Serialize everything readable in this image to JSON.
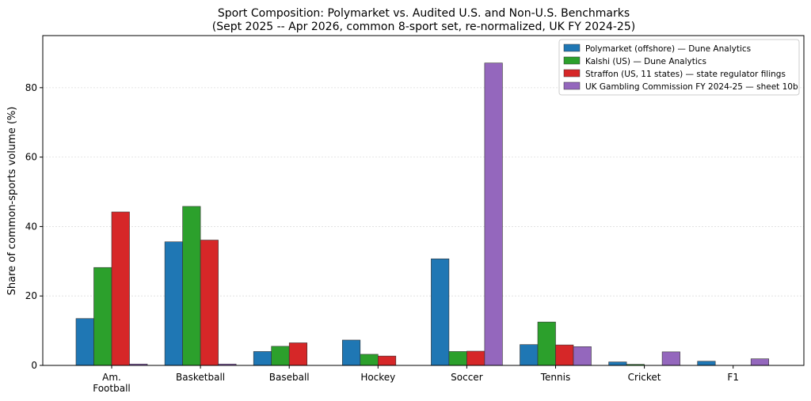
{
  "chart_data": {
    "type": "bar",
    "title": "Sport Composition: Polymarket vs. Audited U.S. and Non-U.S. Benchmarks",
    "subtitle": "(Sept 2025 -- Apr 2026, common 8-sport set, re-normalized, UK FY 2024-25)",
    "xlabel": "",
    "ylabel": "Share of common-sports volume (%)",
    "ylim": [
      0,
      95
    ],
    "yticks": [
      0,
      20,
      40,
      60,
      80
    ],
    "grid": true,
    "legend_position": "top-right",
    "categories": [
      "Am.\nFootball",
      "Basketball",
      "Baseball",
      "Hockey",
      "Soccer",
      "Tennis",
      "Cricket",
      "F1"
    ],
    "series": [
      {
        "name": "Polymarket (offshore) — Dune Analytics",
        "color": "#1f77b4",
        "values": [
          13.5,
          35.6,
          4.0,
          7.3,
          30.7,
          6.0,
          1.0,
          1.2
        ]
      },
      {
        "name": "Kalshi (US) — Dune Analytics",
        "color": "#2ca02c",
        "values": [
          28.2,
          45.8,
          5.5,
          3.2,
          4.0,
          12.5,
          0.3,
          0.0
        ]
      },
      {
        "name": "Straffon (US, 11 states) — state regulator filings",
        "color": "#d62728",
        "values": [
          44.2,
          36.1,
          6.5,
          2.7,
          4.1,
          5.9,
          0.0,
          0.0
        ]
      },
      {
        "name": "UK Gambling Commission FY 2024-25 — sheet 10b",
        "color": "#9467bd",
        "values": [
          0.4,
          0.4,
          0.0,
          0.0,
          87.1,
          5.4,
          3.9,
          1.9
        ]
      }
    ]
  }
}
